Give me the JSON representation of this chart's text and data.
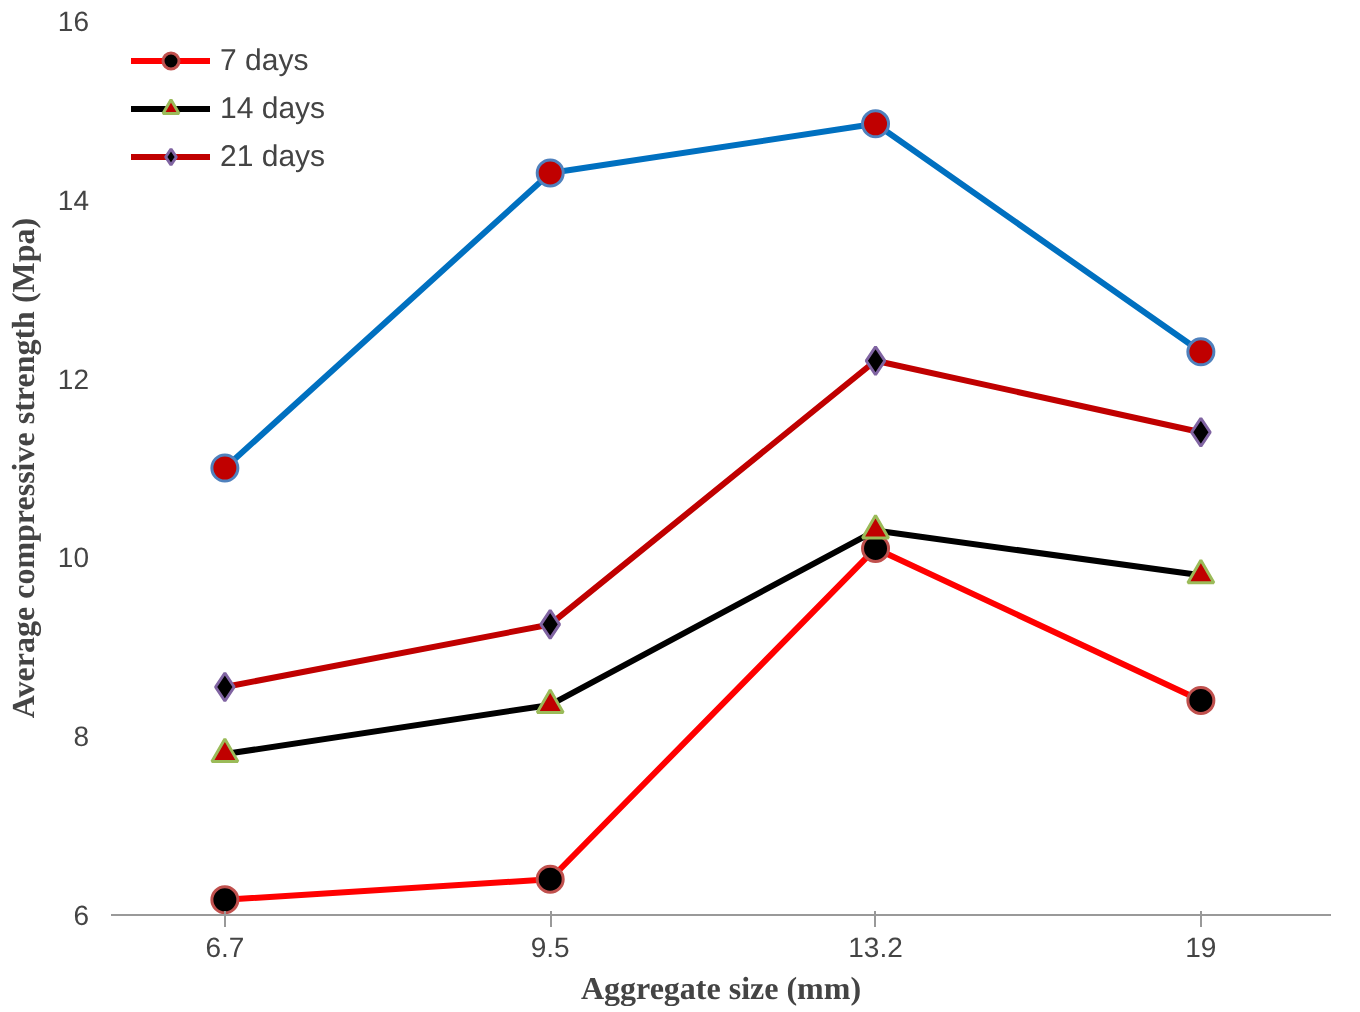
{
  "chart_data": {
    "type": "line",
    "xlabel": "Aggregate size (mm)",
    "ylabel": "Average compressive strength (Mpa)",
    "categories": [
      "6.7",
      "9.5",
      "13.2",
      "19"
    ],
    "ylim": [
      6,
      16
    ],
    "yticks": [
      6,
      8,
      10,
      12,
      14,
      16
    ],
    "grid": false,
    "legend": "top left",
    "line_style": "solid",
    "series": [
      {
        "name": "7 days",
        "color": "#ff0000",
        "marker": "circle",
        "values": [
          6.17,
          6.4,
          10.1,
          8.4
        ]
      },
      {
        "name": "14 days",
        "color": "#000000",
        "marker": "triangle",
        "values": [
          7.8,
          8.35,
          10.3,
          9.8
        ]
      },
      {
        "name": "21 days",
        "color": "#c00000",
        "marker": "diamond",
        "values": [
          8.55,
          9.25,
          12.2,
          11.4
        ]
      },
      {
        "color": "#0070c0",
        "marker": "circle",
        "values": [
          11.0,
          14.3,
          14.85,
          12.3
        ]
      }
    ]
  }
}
